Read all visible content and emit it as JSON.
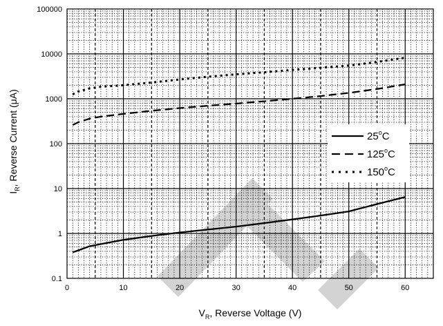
{
  "chart_data": {
    "type": "line",
    "title": "",
    "xlabel": {
      "main": "V",
      "sub": "R",
      "rest": ", Reverse Voltage (V)"
    },
    "ylabel": {
      "main": "I",
      "sub": "R",
      "rest": ", Reverse Current (",
      "mu": "μ",
      "end": "A)"
    },
    "x_scale": "linear",
    "y_scale": "log",
    "xlim": [
      0,
      65
    ],
    "ylim": [
      0.1,
      100000
    ],
    "x_ticks": [
      "0",
      "10",
      "20",
      "30",
      "40",
      "50",
      "60"
    ],
    "y_ticks": [
      "0.1",
      "1",
      "10",
      "100",
      "1000",
      "10000",
      "100000"
    ],
    "grid": "major solid, minor dotted",
    "legend_position": "right",
    "series": [
      {
        "name": "25°C",
        "legend": {
          "num": "25",
          "sup": "o",
          "unit": "C"
        },
        "style": "solid",
        "x": [
          1,
          2,
          4,
          6,
          10,
          15,
          20,
          25,
          30,
          35,
          40,
          45,
          50,
          55,
          60
        ],
        "y": [
          0.38,
          0.42,
          0.52,
          0.58,
          0.72,
          0.88,
          1.05,
          1.22,
          1.42,
          1.7,
          2.05,
          2.5,
          3.1,
          4.5,
          6.5
        ]
      },
      {
        "name": "125°C",
        "legend": {
          "num": "125",
          "sup": "o",
          "unit": "C"
        },
        "style": "dashed",
        "x": [
          1,
          2,
          4,
          6,
          10,
          15,
          20,
          25,
          30,
          35,
          40,
          45,
          50,
          55,
          60
        ],
        "y": [
          260,
          300,
          360,
          400,
          460,
          540,
          620,
          700,
          780,
          880,
          1000,
          1150,
          1350,
          1650,
          2100
        ]
      },
      {
        "name": "150°C",
        "legend": {
          "num": "150",
          "sup": "o",
          "unit": "C"
        },
        "style": "dotted",
        "x": [
          1,
          2,
          4,
          6,
          10,
          15,
          20,
          25,
          30,
          35,
          40,
          45,
          50,
          55,
          60
        ],
        "y": [
          1250,
          1450,
          1700,
          1850,
          2000,
          2300,
          2700,
          3100,
          3500,
          3900,
          4400,
          4900,
          5500,
          6600,
          8200
        ]
      }
    ],
    "watermark_color": "#d3d3d3",
    "line_color": "#000000"
  }
}
